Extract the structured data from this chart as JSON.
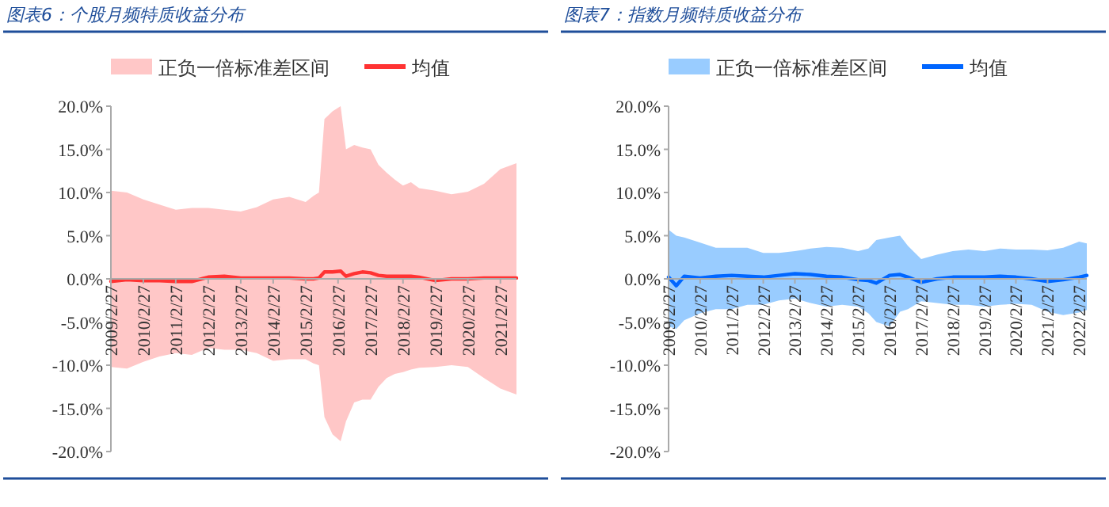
{
  "chart_data": [
    {
      "type": "line",
      "title": "图表6：个股月频特质收益分布",
      "legend": "top",
      "x": [
        "2009-02-27",
        "2009-08-27",
        "2010-02-27",
        "2010-08-27",
        "2011-02-27",
        "2011-08-27",
        "2012-02-27",
        "2012-08-27",
        "2013-02-27",
        "2013-08-27",
        "2014-02-27",
        "2014-08-27",
        "2015-02-27",
        "2015-05-27",
        "2015-07-27",
        "2015-09-27",
        "2015-12-27",
        "2016-03-27",
        "2016-05-27",
        "2016-08-27",
        "2016-11-27",
        "2017-02-27",
        "2017-05-27",
        "2017-08-27",
        "2017-11-27",
        "2018-02-27",
        "2018-05-27",
        "2018-08-27",
        "2019-02-27",
        "2019-08-27",
        "2020-02-27",
        "2020-08-27",
        "2021-02-27",
        "2021-08-27"
      ],
      "xlim": [
        "2009-02-27",
        "2021-08-27"
      ],
      "xticks": [
        {
          "value": "2009-02-27",
          "label": "2009/2/27"
        },
        {
          "value": "2010-02-27",
          "label": "2010/2/27"
        },
        {
          "value": "2011-02-27",
          "label": "2011/2/27"
        },
        {
          "value": "2012-02-27",
          "label": "2012/2/27"
        },
        {
          "value": "2013-02-27",
          "label": "2013/2/27"
        },
        {
          "value": "2014-02-27",
          "label": "2014/2/27"
        },
        {
          "value": "2015-02-27",
          "label": "2015/2/27"
        },
        {
          "value": "2016-02-27",
          "label": "2016/2/27"
        },
        {
          "value": "2017-02-27",
          "label": "2017/2/27"
        },
        {
          "value": "2018-02-27",
          "label": "2018/2/27"
        },
        {
          "value": "2019-02-27",
          "label": "2019/2/27"
        },
        {
          "value": "2020-02-27",
          "label": "2020/2/27"
        },
        {
          "value": "2021-02-27",
          "label": "2021/2/27"
        }
      ],
      "ylim": [
        -20,
        20
      ],
      "yticks": [
        {
          "value": -20,
          "label": "-20.0%"
        },
        {
          "value": -15,
          "label": "-15.0%"
        },
        {
          "value": -10,
          "label": "-10.0%"
        },
        {
          "value": -5,
          "label": "-5.0%"
        },
        {
          "value": 0,
          "label": "0.0%"
        },
        {
          "value": 5,
          "label": "5.0%"
        },
        {
          "value": 10,
          "label": "10.0%"
        },
        {
          "value": 15,
          "label": "15.0%"
        },
        {
          "value": 20,
          "label": "20.0%"
        }
      ],
      "series": [
        {
          "name": "正负一倍标准差区间",
          "type": "area",
          "color": "#ffc7c7",
          "values": [
            null,
            null,
            null,
            null,
            null,
            null,
            null,
            null,
            null,
            null,
            null,
            null,
            null,
            null,
            null,
            null,
            null,
            null,
            null,
            null,
            null,
            null,
            null,
            null,
            null,
            null,
            null,
            null,
            null,
            null,
            null,
            null,
            null,
            null
          ],
          "upper": [
            10.2,
            10.0,
            9.2,
            8.6,
            8.0,
            8.2,
            8.2,
            8.0,
            7.8,
            8.3,
            9.2,
            9.5,
            8.9,
            9.6,
            10,
            18.5,
            19.4,
            20.0,
            15.0,
            15.5,
            15.2,
            15.0,
            13.2,
            12.3,
            11.5,
            10.8,
            11.2,
            10.5,
            10.2,
            9.8,
            10.1,
            11.0,
            12.7,
            13.4
          ],
          "lower": [
            -10.2,
            -10.4,
            -9.6,
            -9.0,
            -8.6,
            -8.8,
            -8.0,
            -8.2,
            -8.2,
            -8.6,
            -9.5,
            -9.3,
            -9.3,
            -9.8,
            -10,
            -16,
            -18,
            -18.8,
            -16.5,
            -14.3,
            -14.0,
            -14.0,
            -12.5,
            -11.5,
            -11.0,
            -10.8,
            -10.5,
            -10.3,
            -10.2,
            -10.0,
            -10.2,
            -11.5,
            -12.7,
            -13.4
          ]
        },
        {
          "name": "均值",
          "type": "line",
          "color": "#ff3333",
          "values": [
            -0.3,
            -0.1,
            -0.2,
            -0.2,
            -0.3,
            -0.3,
            0.2,
            0.3,
            0.1,
            0.1,
            0.1,
            0.1,
            0.0,
            0.0,
            0.1,
            0.8,
            0.8,
            0.9,
            0.3,
            0.6,
            0.8,
            0.7,
            0.4,
            0.3,
            0.3,
            0.3,
            0.3,
            0.2,
            -0.2,
            0.0,
            0.0,
            0.1,
            0.1,
            0.1
          ]
        }
      ]
    },
    {
      "type": "line",
      "title": "图表7：指数月频特质收益分布",
      "legend": "top",
      "x": [
        "2009-02-27",
        "2009-05-27",
        "2009-08-27",
        "2010-02-27",
        "2010-08-27",
        "2011-02-27",
        "2011-08-27",
        "2012-02-27",
        "2012-08-27",
        "2013-02-27",
        "2013-08-27",
        "2014-02-27",
        "2014-08-27",
        "2015-02-27",
        "2015-06-27",
        "2015-09-27",
        "2016-02-27",
        "2016-06-27",
        "2016-09-27",
        "2017-02-27",
        "2017-08-27",
        "2018-02-27",
        "2018-08-27",
        "2019-02-27",
        "2019-08-27",
        "2020-02-27",
        "2020-08-27",
        "2021-02-27",
        "2021-08-27",
        "2022-02-27",
        "2022-05-27"
      ],
      "xlim": [
        "2009-02-27",
        "2022-05-27"
      ],
      "xticks": [
        {
          "value": "2009-02-27",
          "label": "2009/2/27"
        },
        {
          "value": "2010-02-27",
          "label": "2010/2/27"
        },
        {
          "value": "2011-02-27",
          "label": "2011/2/27"
        },
        {
          "value": "2012-02-27",
          "label": "2012/2/27"
        },
        {
          "value": "2013-02-27",
          "label": "2013/2/27"
        },
        {
          "value": "2014-02-27",
          "label": "2014/2/27"
        },
        {
          "value": "2015-02-27",
          "label": "2015/2/27"
        },
        {
          "value": "2016-02-27",
          "label": "2016/2/27"
        },
        {
          "value": "2017-02-27",
          "label": "2017/2/27"
        },
        {
          "value": "2018-02-27",
          "label": "2018/2/27"
        },
        {
          "value": "2019-02-27",
          "label": "2019/2/27"
        },
        {
          "value": "2020-02-27",
          "label": "2020/2/27"
        },
        {
          "value": "2021-02-27",
          "label": "2021/2/27"
        },
        {
          "value": "2022-02-27",
          "label": "2022/2/27"
        }
      ],
      "ylim": [
        -20,
        20
      ],
      "yticks": [
        {
          "value": -20,
          "label": "-20.0%"
        },
        {
          "value": -15,
          "label": "-15.0%"
        },
        {
          "value": -10,
          "label": "-10.0%"
        },
        {
          "value": -5,
          "label": "-5.0%"
        },
        {
          "value": 0,
          "label": "0.0%"
        },
        {
          "value": 5,
          "label": "5.0%"
        },
        {
          "value": 10,
          "label": "10.0%"
        },
        {
          "value": 15,
          "label": "15.0%"
        },
        {
          "value": 20,
          "label": "20.0%"
        }
      ],
      "series": [
        {
          "name": "正负一倍标准差区间",
          "type": "area",
          "color": "#99ccff",
          "values": [
            null,
            null,
            null,
            null,
            null,
            null,
            null,
            null,
            null,
            null,
            null,
            null,
            null,
            null,
            null,
            null,
            null,
            null,
            null,
            null,
            null,
            null,
            null,
            null,
            null,
            null,
            null,
            null,
            null,
            null,
            null
          ],
          "upper": [
            5.7,
            5.0,
            4.8,
            4.2,
            3.6,
            3.6,
            3.6,
            3.0,
            3.0,
            3.2,
            3.5,
            3.7,
            3.6,
            3.2,
            3.5,
            4.5,
            4.8,
            5.0,
            3.8,
            2.3,
            2.8,
            3.2,
            3.4,
            3.2,
            3.5,
            3.4,
            3.4,
            3.3,
            3.6,
            4.3,
            4.1
          ],
          "lower": [
            -5.5,
            -5.8,
            -4.8,
            -4.0,
            -3.5,
            -3.5,
            -3.0,
            -3.0,
            -2.5,
            -2.3,
            -2.8,
            -3.2,
            -3.0,
            -3.2,
            -4.0,
            -5.0,
            -5.5,
            -3.8,
            -3.5,
            -2.6,
            -2.8,
            -3.0,
            -3.0,
            -3.2,
            -3.0,
            -2.9,
            -3.0,
            -3.8,
            -4.2,
            -3.9,
            -3.6
          ]
        },
        {
          "name": "均值",
          "type": "line",
          "color": "#0066ff",
          "values": [
            0.2,
            -0.8,
            0.3,
            0.1,
            0.3,
            0.4,
            0.3,
            0.2,
            0.4,
            0.6,
            0.5,
            0.3,
            0.2,
            -0.1,
            -0.2,
            -0.5,
            0.4,
            0.5,
            0.2,
            -0.4,
            0.0,
            0.2,
            0.2,
            0.2,
            0.3,
            0.2,
            0.0,
            -0.3,
            -0.1,
            0.2,
            0.4
          ]
        }
      ]
    }
  ]
}
